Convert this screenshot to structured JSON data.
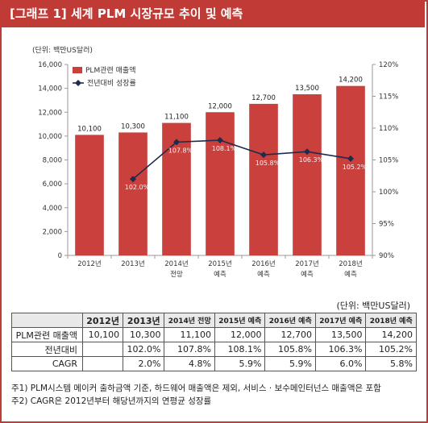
{
  "title": "[그래프 1] 세계 PLM 시장규모 추이 및 예측",
  "chart_data": {
    "type": "bar",
    "unit_label": "(단위: 백만US달러)",
    "categories": [
      [
        "2012년",
        ""
      ],
      [
        "2013년",
        ""
      ],
      [
        "2014년",
        "전망"
      ],
      [
        "2015년",
        "예측"
      ],
      [
        "2016년",
        "예측"
      ],
      [
        "2017년",
        "예측"
      ],
      [
        "2018년",
        "예측"
      ]
    ],
    "series": [
      {
        "name": "PLM관련 매출액",
        "type": "bar",
        "axis": "left",
        "color": "#c9403c",
        "values": [
          10100,
          10300,
          11100,
          12000,
          12700,
          13500,
          14200
        ],
        "labels": [
          "10,100",
          "10,300",
          "11,100",
          "12,000",
          "12,700",
          "13,500",
          "14,200"
        ]
      },
      {
        "name": "전년대비 성장률",
        "type": "line",
        "axis": "right",
        "color": "#1d2b4f",
        "values": [
          null,
          102.0,
          107.8,
          108.1,
          105.8,
          106.3,
          105.2
        ],
        "labels": [
          "",
          "102.0%",
          "107.8%",
          "108.1%",
          "105.8%",
          "106.3%",
          "105.2%"
        ]
      }
    ],
    "y_left": {
      "min": 0,
      "max": 16000,
      "step": 2000,
      "ticks": [
        "0",
        "2,000",
        "4,000",
        "6,000",
        "8,000",
        "10,000",
        "12,000",
        "14,000",
        "16,000"
      ]
    },
    "y_right": {
      "min": 90,
      "max": 120,
      "step": 5,
      "ticks": [
        "90%",
        "95%",
        "100%",
        "105%",
        "110%",
        "115%",
        "120%"
      ]
    },
    "grid": false,
    "legend_position": "top-left"
  },
  "table": {
    "unit": "(단위: 백만US달러)",
    "headers": [
      "",
      "2012년",
      "2013년",
      "2014년 전망",
      "2015년 예측",
      "2016년 예측",
      "2017년 예측",
      "2018년 예측"
    ],
    "rows": [
      {
        "label": "PLM관련 매출액",
        "cells": [
          "10,100",
          "10,300",
          "11,100",
          "12,000",
          "12,700",
          "13,500",
          "14,200"
        ]
      },
      {
        "label": "전년대비",
        "cells": [
          "",
          "102.0%",
          "107.8%",
          "108.1%",
          "105.8%",
          "106.3%",
          "105.2%"
        ]
      },
      {
        "label": "CAGR",
        "cells": [
          "",
          "2.0%",
          "4.8%",
          "5.9%",
          "5.9%",
          "6.0%",
          "5.8%"
        ]
      }
    ]
  },
  "notes": [
    "주1) PLM시스템 메이커 출하금액 기준, 하드웨어 매출액은 제외, 서비스 · 보수메인터넌스 매출액은 포함",
    "주2) CAGR은 2012년부터 해당년까지의 연평균 성장률"
  ]
}
